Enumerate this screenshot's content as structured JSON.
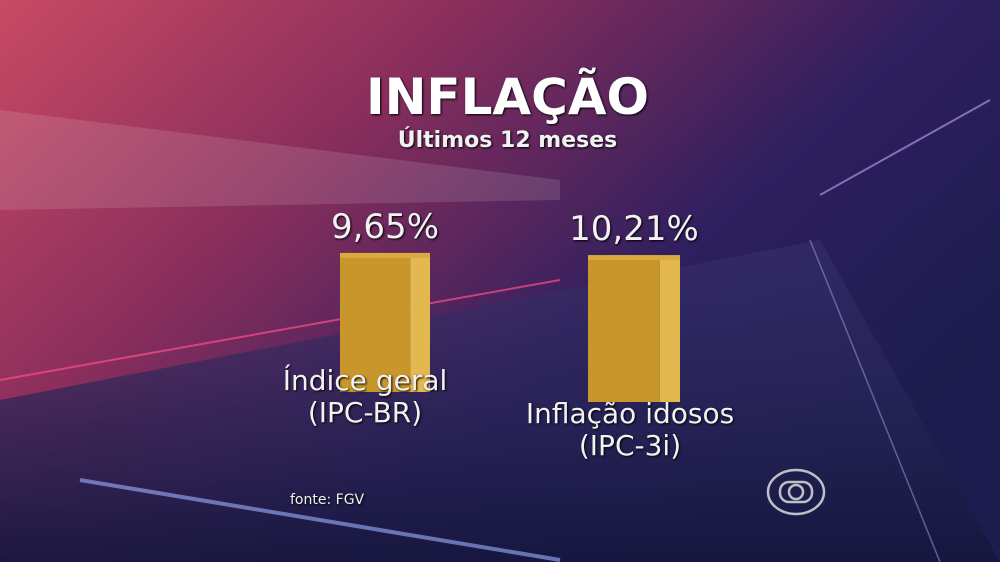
{
  "chart_data": {
    "type": "bar",
    "title": "INFLAÇÃO",
    "subtitle": "Últimos 12 meses",
    "categories": [
      "Índice geral\n(IPC-BR)",
      "Inflação idosos\n(IPC-3i)"
    ],
    "values": [
      9.65,
      10.21
    ],
    "value_labels": [
      "9,65%",
      "10,21%"
    ],
    "color": "#c9962b",
    "source": "fonte: FGV"
  }
}
